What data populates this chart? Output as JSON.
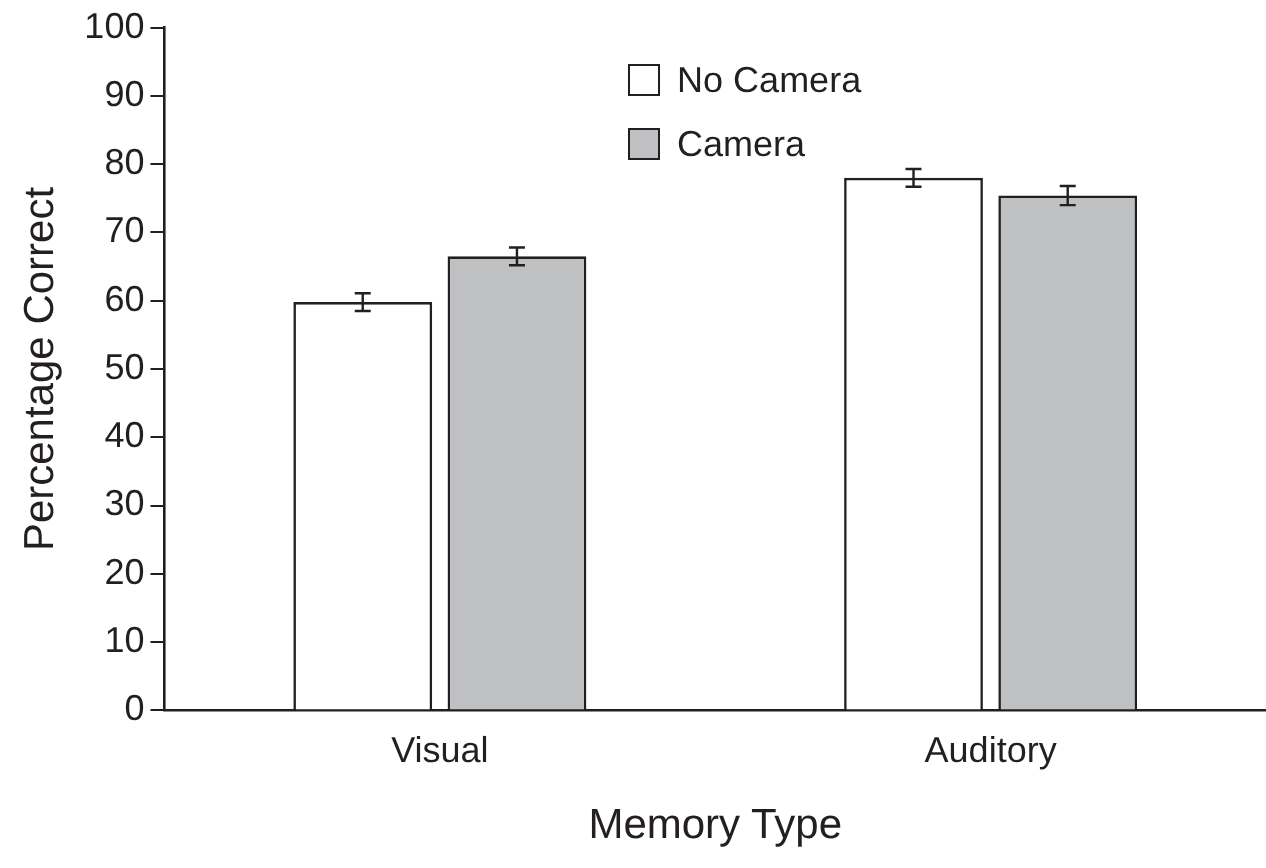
{
  "chart_data": {
    "type": "bar",
    "xlabel": "Memory Type",
    "ylabel": "Percentage Correct",
    "categories": [
      "Visual",
      "Auditory"
    ],
    "series": [
      {
        "name": "No Camera",
        "color": "#ffffff",
        "values": [
          59.8,
          78.0
        ],
        "errors": [
          1.3,
          1.3
        ]
      },
      {
        "name": "Camera",
        "color": "#bfc0c2",
        "values": [
          66.5,
          75.4
        ],
        "errors": [
          1.3,
          1.4
        ]
      }
    ],
    "ylim": [
      0,
      100
    ],
    "yticks": [
      0,
      10,
      20,
      30,
      40,
      50,
      60,
      70,
      80,
      90,
      100
    ],
    "grid": false,
    "legend": "top"
  }
}
